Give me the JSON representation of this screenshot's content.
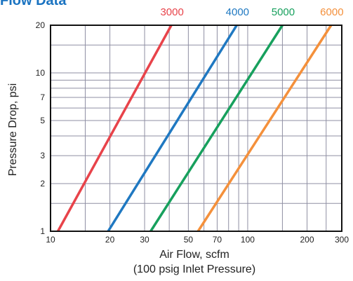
{
  "chart_data": {
    "type": "line",
    "title": "Flow Data",
    "xlabel": "Air Flow, scfm",
    "xlabel_sub": "(100 psig Inlet Pressure)",
    "ylabel": "Pressure Drop, psi",
    "xscale": "log",
    "yscale": "log",
    "xlim": [
      10,
      300
    ],
    "ylim": [
      1,
      20
    ],
    "x_tick_labels": [
      "10",
      "20",
      "30",
      "50",
      "70",
      "100",
      "200",
      "300"
    ],
    "y_tick_labels": [
      "1",
      "2",
      "3",
      "5",
      "7",
      "10",
      "20"
    ],
    "grid": true,
    "legend": "labels above plot, aligned with each line",
    "series": [
      {
        "name": "3000",
        "color": "#e8434a",
        "points": [
          [
            10.9,
            1
          ],
          [
            41,
            20
          ]
        ]
      },
      {
        "name": "4000",
        "color": "#1f78c1",
        "points": [
          [
            19.6,
            1
          ],
          [
            88,
            20
          ]
        ]
      },
      {
        "name": "5000",
        "color": "#17a05d",
        "points": [
          [
            32.2,
            1
          ],
          [
            150,
            20
          ]
        ]
      },
      {
        "name": "6000",
        "color": "#f4903b",
        "points": [
          [
            56,
            1
          ],
          [
            265,
            20
          ]
        ]
      }
    ]
  }
}
